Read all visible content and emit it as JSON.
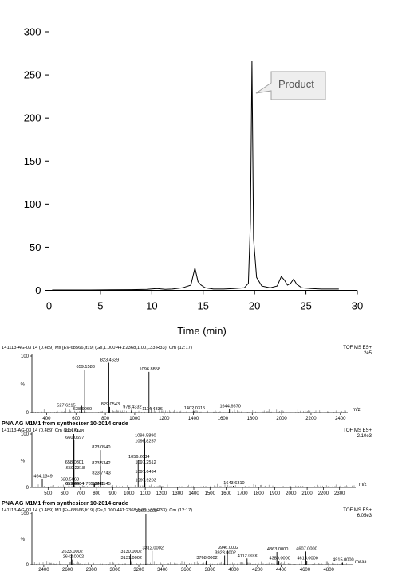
{
  "chart_data": [
    {
      "type": "line",
      "xlabel": "Time (min)",
      "ylabel": "",
      "xlim": [
        0,
        30
      ],
      "ylim": [
        0,
        300
      ],
      "xticks": [
        0,
        5,
        10,
        15,
        20,
        25,
        30
      ],
      "yticks": [
        0,
        50,
        100,
        150,
        200,
        250,
        300
      ],
      "annotation": "Product",
      "series": [
        {
          "x": [
            0.3,
            2,
            4,
            6,
            8,
            9.5,
            10.5,
            11.3,
            12,
            13,
            13.8,
            14.2,
            14.5,
            14.8,
            15.2,
            16,
            17,
            18,
            19,
            19.4,
            19.6,
            19.75,
            19.9,
            20.2,
            20.7,
            21.5,
            22.2,
            22.6,
            22.9,
            23.2,
            23.5,
            23.8,
            24.1,
            24.6,
            25.5,
            26.5,
            28.2
          ],
          "y": [
            0.5,
            0.5,
            0.5,
            0.7,
            0.8,
            1.2,
            2,
            1.2,
            1.5,
            3,
            6,
            26,
            10,
            6,
            3,
            1.5,
            1.5,
            2,
            3,
            8,
            80,
            266,
            60,
            15,
            5,
            3,
            5,
            16,
            12,
            6,
            8,
            13,
            7,
            3,
            2,
            1.5,
            1.5
          ]
        }
      ]
    },
    {
      "type": "line",
      "header_left": "141113-AG-03  14 (0.489) Mx [Ev-68566,It19] (Gs,1.000,441:2368,1.00,L33,R33); Cm (12:17)",
      "header_right": "TOF MS ES+",
      "intensity": "2e5",
      "ylabel": "%",
      "xlabel": "m/z",
      "xlim": [
        300,
        2450
      ],
      "xticks": [
        400,
        600,
        800,
        1000,
        1200,
        1400,
        1600,
        1800,
        2000,
        2200,
        2400
      ],
      "yticks": [
        0,
        100
      ],
      "peaks": [
        {
          "x": 527.6215,
          "y": 8,
          "label": "527.6215"
        },
        {
          "x": 638.906,
          "y": 12,
          "label": "638.9060"
        },
        {
          "x": 659.1583,
          "y": 76,
          "label": "659.1583"
        },
        {
          "x": 823.4639,
          "y": 88,
          "label": "823.4639"
        },
        {
          "x": 829.0543,
          "y": 10,
          "label": "829.0543"
        },
        {
          "x": 978.4332,
          "y": 5,
          "label": "978.4332"
        },
        {
          "x": 1096.8858,
          "y": 72,
          "label": "1096.8858"
        },
        {
          "x": 1114.4836,
          "y": 9,
          "label": "1114.4836"
        },
        {
          "x": 1402.0315,
          "y": 3,
          "label": "1402.0315"
        },
        {
          "x": 1644.667,
          "y": 6,
          "label": "1644.6670"
        }
      ]
    },
    {
      "type": "line",
      "title": "PNA AG M1M1 from synthesizer 10-2014 crude",
      "header_left": "141113-AG-03 14 (0.489) Cm (12:17)",
      "header_right": "TOF MS ES+",
      "intensity": "2.10e3",
      "ylabel": "%",
      "xlabel": "m/z",
      "xlim": [
        400,
        2400
      ],
      "xticks": [
        500,
        600,
        700,
        800,
        900,
        1000,
        1100,
        1200,
        1300,
        1400,
        1500,
        1600,
        1700,
        1800,
        1900,
        2000,
        2100,
        2200,
        2300
      ],
      "yticks": [
        0,
        100
      ],
      "peaks": [
        {
          "x": 464.1349,
          "y": 16,
          "label": "464.1349"
        },
        {
          "x": 628.5668,
          "y": 10,
          "label": "628.5668"
        },
        {
          "x": 658.0301,
          "y": 42,
          "label": "658.0301"
        },
        {
          "x": 659.4464,
          "y": 18,
          "label": "659.4464"
        },
        {
          "x": 659.8334,
          "y": 4,
          "label": "659.8334"
        },
        {
          "x": 659.2318,
          "y": 38,
          "label": ".659.2318"
        },
        {
          "x": 658.5448,
          "y": 100,
          "label": "658.5448"
        },
        {
          "x": 660.0697,
          "y": 88,
          "label": "660.0697"
        },
        {
          "x": 785.3345,
          "y": 9,
          "label": "785.3345"
        },
        {
          "x": 823.054,
          "y": 70,
          "label": "823.0540"
        },
        {
          "x": 823.5342,
          "y": 40,
          "label": "823.5342"
        },
        {
          "x": 823.7743,
          "y": 22,
          "label": "823.7743"
        },
        {
          "x": 824.0145,
          "y": 7,
          "label": "824.0145"
        },
        {
          "x": 1056.2634,
          "y": 52,
          "label": "1056.2634"
        },
        {
          "x": 1096.589,
          "y": 92,
          "label": "1096.5890"
        },
        {
          "x": 1096.8257,
          "y": 84,
          "label": "1096.8257"
        },
        {
          "x": 1097.2512,
          "y": 46,
          "label": "1097.2512"
        },
        {
          "x": 1097.6494,
          "y": 24,
          "label": "1097.6494"
        },
        {
          "x": 1097.9203,
          "y": 8,
          "label": "1097.9203"
        },
        {
          "x": 1643.631,
          "y": 3,
          "label": "1643.6310"
        }
      ]
    },
    {
      "type": "line",
      "title": "PNA AG M1M1 from synthesizer 10-2014 crude",
      "header_left": "141113-AG-03  14 (0.489) M1 [Ev-68566,It19] (Gs,1.000,441:2368,1.00,L33,R33); Cm (12:17)",
      "header_right": "TOF MS ES+",
      "intensity": "6.05e3",
      "ylabel": "%",
      "xlabel": "mass",
      "xlim": [
        2300,
        5000
      ],
      "xticks": [
        2400,
        2600,
        2800,
        3000,
        3200,
        3400,
        3600,
        3800,
        4000,
        4200,
        4400,
        4600,
        4800
      ],
      "yticks": [
        0,
        100
      ],
      "peaks": [
        {
          "x": 2633.0002,
          "y": 20,
          "label": "2633.0002"
        },
        {
          "x": 2642.0002,
          "y": 10,
          "label": "2642.0002"
        },
        {
          "x": 3130.0002,
          "y": 20,
          "label": "3130.0002"
        },
        {
          "x": 3131.0002,
          "y": 8,
          "label": "3131.0002"
        },
        {
          "x": 3260.0002,
          "y": 100,
          "label": "3260.0002"
        },
        {
          "x": 3312.0002,
          "y": 27,
          "label": "3312.0002"
        },
        {
          "x": 3768.0002,
          "y": 8,
          "label": "3768.0002"
        },
        {
          "x": 3923.0002,
          "y": 18,
          "label": "3923.0002"
        },
        {
          "x": 3946.0002,
          "y": 28,
          "label": "3946.0002"
        },
        {
          "x": 4112.0,
          "y": 12,
          "label": "4112.0000"
        },
        {
          "x": 4363.0,
          "y": 25,
          "label": "4363.0000"
        },
        {
          "x": 4380.0,
          "y": 7,
          "label": "4380.0000"
        },
        {
          "x": 4607.0,
          "y": 26,
          "label": "4607.0000"
        },
        {
          "x": 4615.0,
          "y": 7,
          "label": "4615.0000"
        },
        {
          "x": 4915.0,
          "y": 4,
          "label": "4915.0000"
        }
      ]
    }
  ]
}
